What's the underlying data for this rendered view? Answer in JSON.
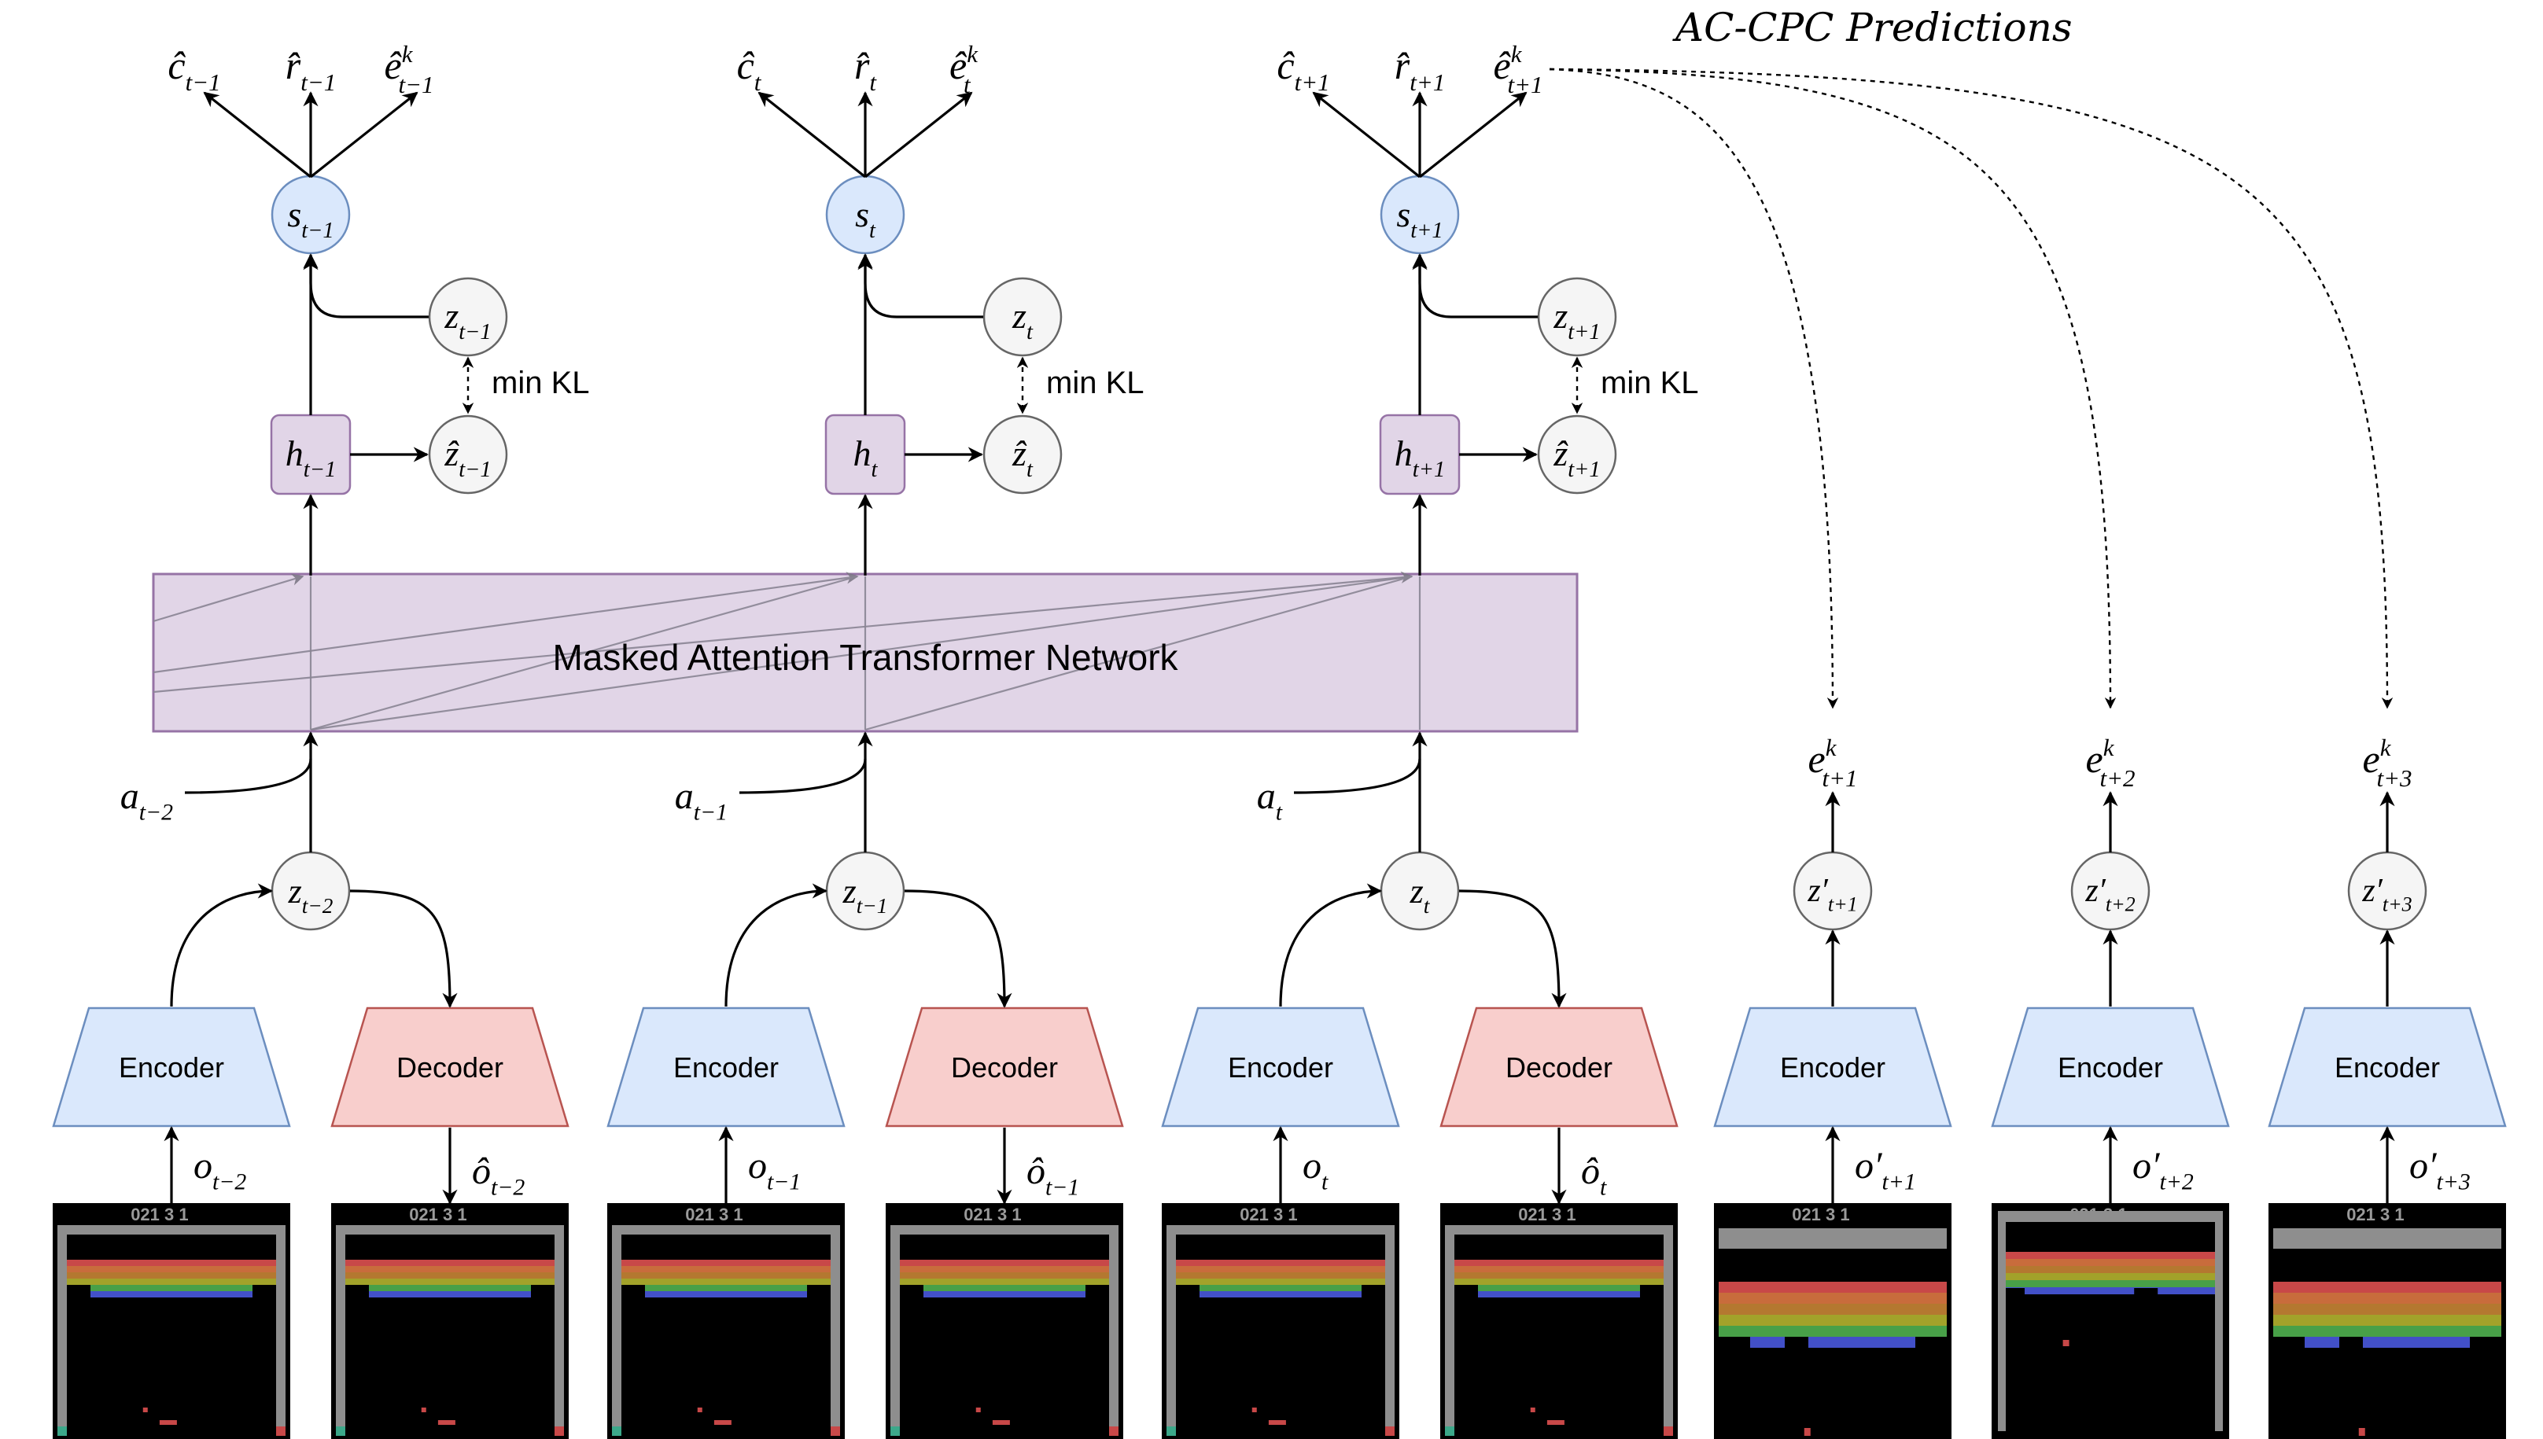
{
  "title": "AC-CPC Predictions",
  "transformer_label": "Masked Attention Transformer Network",
  "min_kl_label": "min KL",
  "encoder_label": "Encoder",
  "decoder_label": "Decoder",
  "steps": [
    {
      "s": "s",
      "s_sub": "t−1",
      "h": "h",
      "h_sub": "t−1",
      "z": "z",
      "z_sub": "t−1",
      "zhat": "ẑ",
      "zhat_sub": "t−1",
      "c": "ĉ",
      "c_sub": "t−1",
      "r": "r̂",
      "r_sub": "t−1",
      "e": "ê",
      "e_sub": "t−1",
      "e_sup": "k",
      "a": "a",
      "a_sub": "t−2",
      "zin": "z",
      "zin_sub": "t−2",
      "o": "o",
      "o_sub": "t−2",
      "ohat": "ô",
      "ohat_sub": "t−2"
    },
    {
      "s": "s",
      "s_sub": "t",
      "h": "h",
      "h_sub": "t",
      "z": "z",
      "z_sub": "t",
      "zhat": "ẑ",
      "zhat_sub": "t",
      "c": "ĉ",
      "c_sub": "t",
      "r": "r̂",
      "r_sub": "t",
      "e": "ê",
      "e_sub": "t",
      "e_sup": "k",
      "a": "a",
      "a_sub": "t−1",
      "zin": "z",
      "zin_sub": "t−1",
      "o": "o",
      "o_sub": "t−1",
      "ohat": "ô",
      "ohat_sub": "t−1"
    },
    {
      "s": "s",
      "s_sub": "t+1",
      "h": "h",
      "h_sub": "t+1",
      "z": "z",
      "z_sub": "t+1",
      "zhat": "ẑ",
      "zhat_sub": "t+1",
      "c": "ĉ",
      "c_sub": "t+1",
      "r": "r̂",
      "r_sub": "t+1",
      "e": "ê",
      "e_sub": "t+1",
      "e_sup": "k",
      "a": "a",
      "a_sub": "t",
      "zin": "z",
      "zin_sub": "t",
      "o": "o",
      "o_sub": "t",
      "ohat": "ô",
      "ohat_sub": "t"
    }
  ],
  "future": [
    {
      "e": "e",
      "e_sub": "t+1",
      "e_sup": "k",
      "z": "z′",
      "z_sub": "t+1",
      "o": "o′",
      "o_sub": "t+1"
    },
    {
      "e": "e",
      "e_sub": "t+2",
      "e_sup": "k",
      "z": "z′",
      "z_sub": "t+2",
      "o": "o′",
      "o_sub": "t+2"
    },
    {
      "e": "e",
      "e_sub": "t+3",
      "e_sup": "k",
      "z": "z′",
      "z_sub": "t+3",
      "o": "o′",
      "o_sub": "t+3"
    }
  ],
  "frame_score": "021  3  1",
  "colors": {
    "state_fill": "#dae8fc",
    "state_stroke": "#6c8ebf",
    "hidden_fill": "#e1d5e7",
    "hidden_stroke": "#9673a6",
    "latent_fill": "#f5f5f5",
    "latent_stroke": "#666666",
    "encoder_fill": "#dae8fc",
    "encoder_stroke": "#6c8ebf",
    "decoder_fill": "#f8cecc",
    "decoder_stroke": "#b85450"
  }
}
